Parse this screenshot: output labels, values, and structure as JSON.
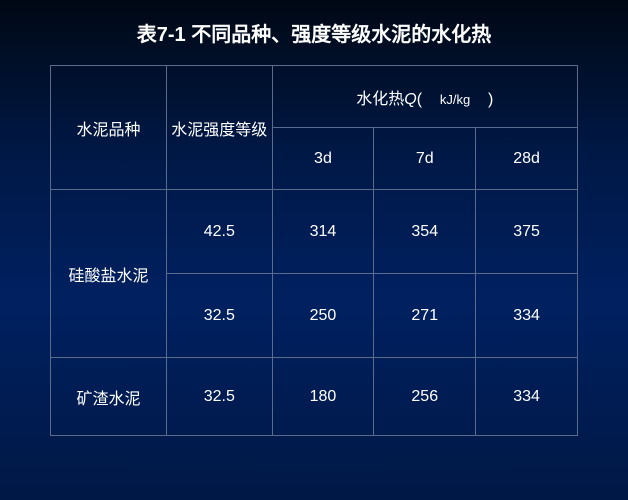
{
  "title": "表7-1  不同品种、强度等级水泥的水化热",
  "title_fontsize": 20,
  "header": {
    "col1": "水泥品种",
    "col2": "水泥强度等级",
    "merged_header_prefix": "水化热",
    "merged_header_q": "Q",
    "merged_header_open": "(",
    "merged_header_unit": "kJ/kg",
    "merged_header_close": ")",
    "sub1": "3d",
    "sub2": "7d",
    "sub3": "28d"
  },
  "rows": [
    {
      "type": "硅酸盐水泥",
      "grade": "42.5",
      "d3": "314",
      "d7": "354",
      "d28": "375",
      "rowspan": 2
    },
    {
      "grade": "32.5",
      "d3": "250",
      "d7": "271",
      "d28": "334"
    },
    {
      "type": "矿渣水泥",
      "grade": "32.5",
      "d3": "180",
      "d7": "256",
      "d28": "334",
      "rowspan": 1
    }
  ],
  "style": {
    "border_color": "#5a6b8c",
    "background": "linear-gradient(180deg, #000814 0%, #001845 30%, #002060 60%, #001845 100%)",
    "text_color": "#ffffff",
    "cell_fontsize": 16,
    "header_row_height": 62,
    "data_row_height": 84,
    "last_row_height": 78,
    "col_widths": [
      "22%",
      "20%",
      "19.3%",
      "19.3%",
      "19.3%"
    ]
  }
}
